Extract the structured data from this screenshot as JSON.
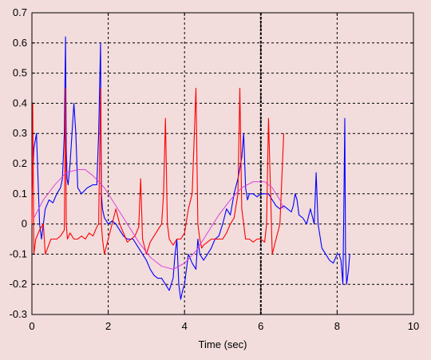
{
  "chart_data": {
    "type": "line",
    "title": "",
    "xlabel": "Time (sec)",
    "ylabel": "",
    "xlim": [
      0,
      10
    ],
    "ylim": [
      -0.3,
      0.7
    ],
    "xticks": [
      0,
      2,
      4,
      6,
      8,
      10
    ],
    "yticks": [
      -0.3,
      -0.2,
      -0.1,
      0,
      0.1,
      0.2,
      0.3,
      0.4,
      0.5,
      0.6,
      0.7
    ],
    "grid": true,
    "legend": "none",
    "vertical_marker_x": 6,
    "colors": {
      "blue": "#0000ff",
      "red": "#ff0000",
      "magenta": "#dd33dd",
      "background": "#f2dcdc"
    },
    "series": [
      {
        "color": "#0000ff",
        "x": [
          0,
          0.05,
          0.12,
          0.2,
          0.25,
          0.3,
          0.35,
          0.45,
          0.55,
          0.65,
          0.75,
          0.8,
          0.85,
          0.88,
          0.9,
          0.92,
          0.95,
          1.0,
          1.05,
          1.1,
          1.15,
          1.2,
          1.3,
          1.45,
          1.6,
          1.7,
          1.75,
          1.8,
          1.82,
          1.85,
          1.9,
          2.0,
          2.1,
          2.2,
          2.3,
          2.4,
          2.5,
          2.65,
          2.8,
          2.9,
          3.0,
          3.1,
          3.2,
          3.3,
          3.4,
          3.5,
          3.6,
          3.7,
          3.75,
          3.8,
          3.85,
          3.9,
          3.95,
          4.0,
          4.05,
          4.1,
          4.2,
          4.3,
          4.35,
          4.4,
          4.5,
          4.6,
          4.7,
          4.8,
          4.9,
          5.0,
          5.1,
          5.2,
          5.3,
          5.4,
          5.5,
          5.55,
          5.6,
          5.65,
          5.7,
          5.8,
          5.9,
          6.0,
          6.1,
          6.2,
          6.3,
          6.4,
          6.5,
          6.6,
          6.7,
          6.8,
          6.85,
          6.9,
          6.95,
          7.0,
          7.1,
          7.2,
          7.3,
          7.4,
          7.45,
          7.5,
          7.6,
          7.7,
          7.8,
          7.9,
          8.0,
          8.05,
          8.1,
          8.15,
          8.18,
          8.2,
          8.22,
          8.25,
          8.3,
          8.33
        ],
        "y": [
          0.1,
          0.25,
          0.3,
          0.0,
          -0.05,
          0.0,
          0.05,
          0.08,
          0.07,
          0.1,
          0.12,
          0.15,
          0.3,
          0.62,
          0.25,
          0.15,
          0.13,
          0.2,
          0.3,
          0.4,
          0.3,
          0.12,
          0.1,
          0.12,
          0.13,
          0.13,
          0.3,
          0.6,
          0.1,
          0.05,
          0.02,
          0.0,
          0.01,
          0.0,
          -0.02,
          -0.04,
          -0.05,
          -0.05,
          -0.08,
          -0.1,
          -0.12,
          -0.15,
          -0.17,
          -0.18,
          -0.18,
          -0.2,
          -0.22,
          -0.18,
          -0.1,
          -0.05,
          -0.2,
          -0.25,
          -0.22,
          -0.2,
          -0.15,
          -0.1,
          -0.13,
          -0.15,
          -0.05,
          -0.1,
          -0.12,
          -0.1,
          -0.08,
          -0.05,
          -0.04,
          0.0,
          0.05,
          0.03,
          0.1,
          0.15,
          0.22,
          0.3,
          0.12,
          0.08,
          0.1,
          0.1,
          0.09,
          0.1,
          0.1,
          0.1,
          0.08,
          0.06,
          0.05,
          0.06,
          0.05,
          0.04,
          0.06,
          0.1,
          0.08,
          0.03,
          0.02,
          0.0,
          0.05,
          0.0,
          0.17,
          0.0,
          -0.08,
          -0.1,
          -0.12,
          -0.13,
          -0.1,
          -0.1,
          -0.12,
          -0.2,
          0.1,
          0.35,
          -0.1,
          -0.2,
          -0.15,
          -0.1
        ]
      },
      {
        "color": "#ff0000",
        "x": [
          0,
          0.02,
          0.05,
          0.1,
          0.2,
          0.3,
          0.35,
          0.5,
          0.65,
          0.75,
          0.85,
          0.88,
          0.9,
          0.93,
          1.0,
          1.1,
          1.2,
          1.3,
          1.4,
          1.5,
          1.6,
          1.7,
          1.75,
          1.8,
          1.82,
          1.85,
          1.9,
          2.0,
          2.1,
          2.2,
          2.3,
          2.4,
          2.5,
          2.6,
          2.7,
          2.8,
          2.85,
          2.9,
          3.0,
          3.1,
          3.2,
          3.3,
          3.4,
          3.45,
          3.5,
          3.55,
          3.6,
          3.7,
          3.8,
          3.9,
          4.0,
          4.1,
          4.2,
          4.3,
          4.35,
          4.4,
          4.45,
          4.5,
          4.6,
          4.7,
          4.8,
          4.9,
          5.0,
          5.1,
          5.2,
          5.3,
          5.4,
          5.45,
          5.5,
          5.6,
          5.7,
          5.8,
          5.9,
          6.0,
          6.1,
          6.15,
          6.2,
          6.3,
          6.4,
          6.5,
          6.6
        ],
        "y": [
          0.0,
          0.4,
          -0.1,
          -0.05,
          -0.02,
          0.0,
          -0.1,
          -0.05,
          -0.05,
          -0.04,
          -0.02,
          0.45,
          0.0,
          -0.05,
          -0.03,
          -0.05,
          -0.05,
          -0.04,
          -0.05,
          -0.03,
          -0.04,
          -0.01,
          0.0,
          0.45,
          0.0,
          -0.05,
          -0.1,
          -0.05,
          0.0,
          0.05,
          0.0,
          -0.03,
          -0.06,
          -0.05,
          -0.04,
          -0.01,
          0.15,
          -0.05,
          -0.1,
          -0.06,
          -0.04,
          -0.02,
          0.0,
          0.1,
          0.35,
          0.0,
          -0.05,
          -0.07,
          -0.05,
          -0.05,
          -0.03,
          0.05,
          0.1,
          0.45,
          0.0,
          -0.05,
          -0.08,
          -0.07,
          -0.06,
          -0.05,
          -0.05,
          -0.05,
          -0.05,
          -0.03,
          0.0,
          0.02,
          0.1,
          0.45,
          0.05,
          -0.05,
          -0.05,
          -0.06,
          -0.05,
          -0.05,
          -0.06,
          0.0,
          0.35,
          -0.1,
          -0.05,
          0.0,
          0.3
        ]
      },
      {
        "color": "#dd33dd",
        "x": [
          0.05,
          0.3,
          0.6,
          0.9,
          1.2,
          1.4,
          1.6,
          1.9,
          2.2,
          2.5,
          2.8,
          3.1,
          3.4,
          3.7,
          4.0,
          4.3,
          4.6,
          4.9,
          5.2,
          5.5,
          5.8,
          6.1,
          6.3,
          6.5,
          6.6
        ],
        "y": [
          0.02,
          0.08,
          0.13,
          0.17,
          0.18,
          0.18,
          0.16,
          0.12,
          0.06,
          0.0,
          -0.06,
          -0.11,
          -0.14,
          -0.15,
          -0.13,
          -0.09,
          -0.03,
          0.03,
          0.08,
          0.12,
          0.14,
          0.14,
          0.12,
          0.08,
          0.05
        ]
      }
    ]
  }
}
